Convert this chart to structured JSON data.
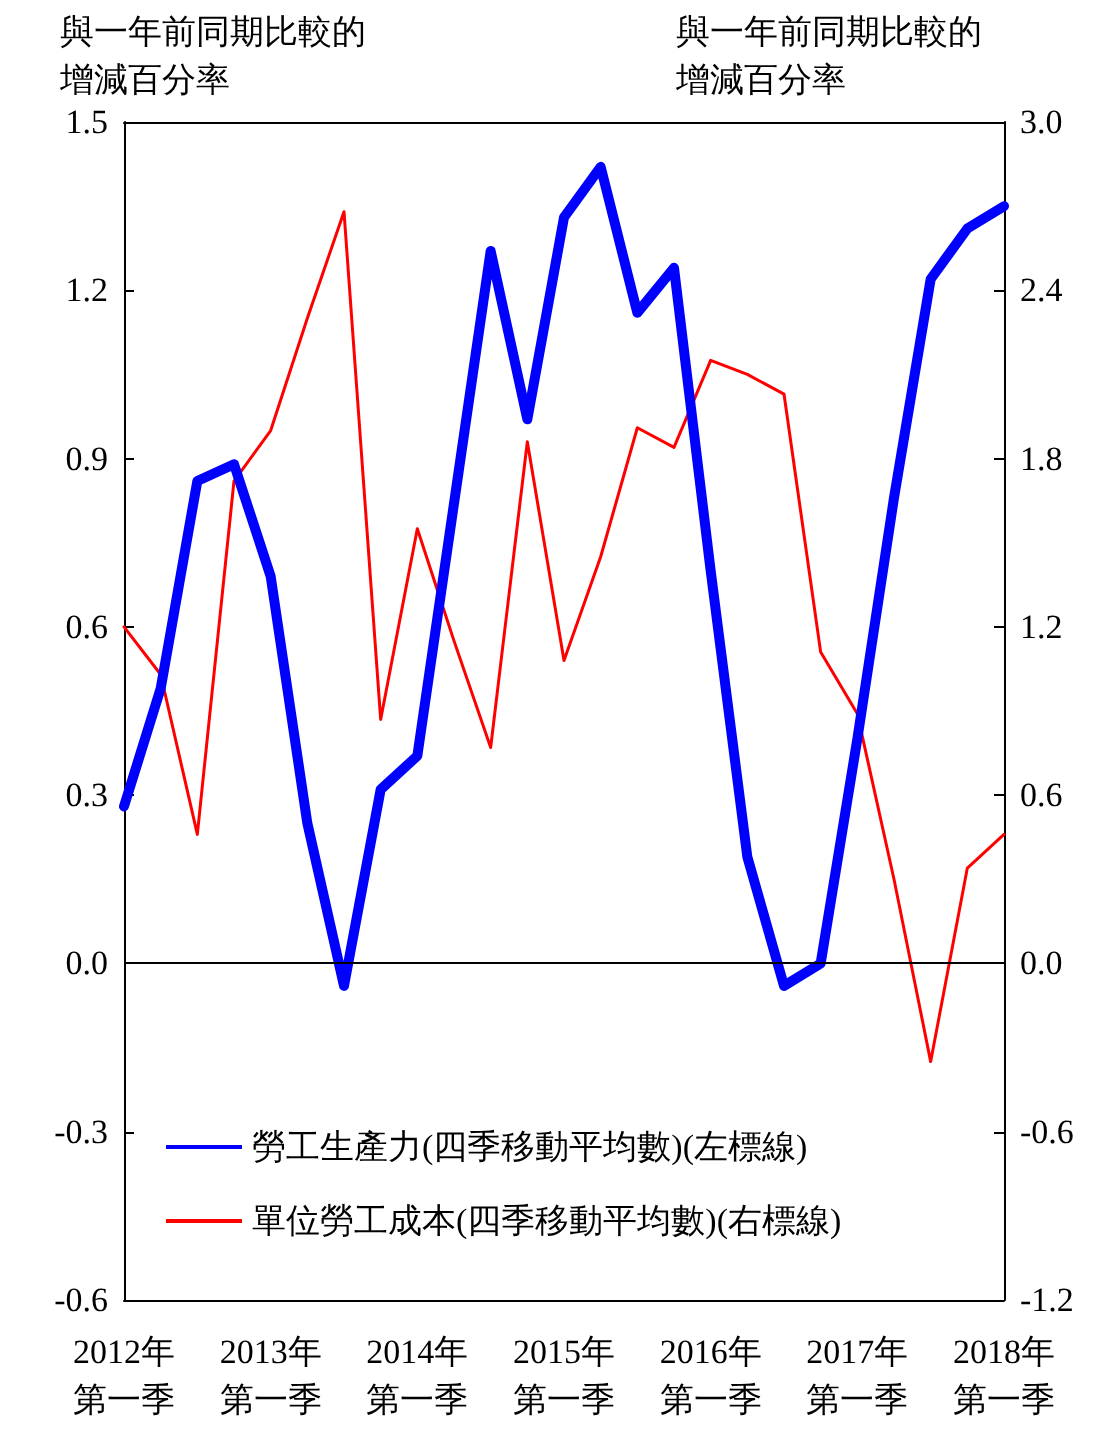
{
  "chart_data": {
    "type": "line",
    "ylabel": "與一年前同期比較的增減百分率",
    "y2label": "與一年前同期比較的增減百分率",
    "categories": [
      "2012年第一季",
      null,
      null,
      null,
      "2013年第一季",
      null,
      null,
      null,
      "2014年第一季",
      null,
      null,
      null,
      "2015年第一季",
      null,
      null,
      null,
      "2016年第一季",
      null,
      null,
      null,
      "2017年第一季",
      null,
      null,
      null,
      "2018年第一季"
    ],
    "series": [
      {
        "name": "勞工生產力(四季移動平均數)(左標線)",
        "color": "#0000ff",
        "values": [
          0.28,
          0.49,
          0.86,
          0.89,
          0.69,
          0.25,
          -0.04,
          0.31,
          0.37,
          0.82,
          1.27,
          0.97,
          1.33,
          1.42,
          1.16,
          1.24,
          0.7,
          0.19,
          -0.04,
          0.0,
          0.4,
          0.83,
          1.22,
          1.31,
          1.35
        ]
      },
      {
        "name": "單位勞工成本(四季移動平均數)(右標線)",
        "color": "#ff0000",
        "axis": "y2",
        "values": [
          1.2,
          1.03,
          0.46,
          1.72,
          1.9,
          2.3,
          2.68,
          0.87,
          1.55,
          1.15,
          0.77,
          1.86,
          1.08,
          1.45,
          1.91,
          1.84,
          2.15,
          2.1,
          2.03,
          1.11,
          0.89,
          0.3,
          -0.35,
          0.34,
          0.46
        ]
      }
    ],
    "ylim": [
      -0.6,
      1.5
    ],
    "yticks": [
      -0.6,
      -0.3,
      {
        "value": 0,
        "label": "0.0"
      },
      0.3,
      0.6,
      0.9,
      1.2,
      1.5
    ],
    "y2lim": [
      -1.2,
      3.0
    ],
    "y2ticks": [
      -1.2,
      -0.6,
      {
        "value": 0,
        "label": "0.0"
      },
      0.6,
      1.2,
      1.8,
      2.4,
      {
        "value": 3,
        "label": "3.0"
      }
    ],
    "ref_lines": [
      {
        "axis": "y",
        "value": 0,
        "color": "#000000"
      }
    ],
    "grid": false,
    "legend": "bottom left",
    "marker": "none",
    "line_style": "solid"
  }
}
